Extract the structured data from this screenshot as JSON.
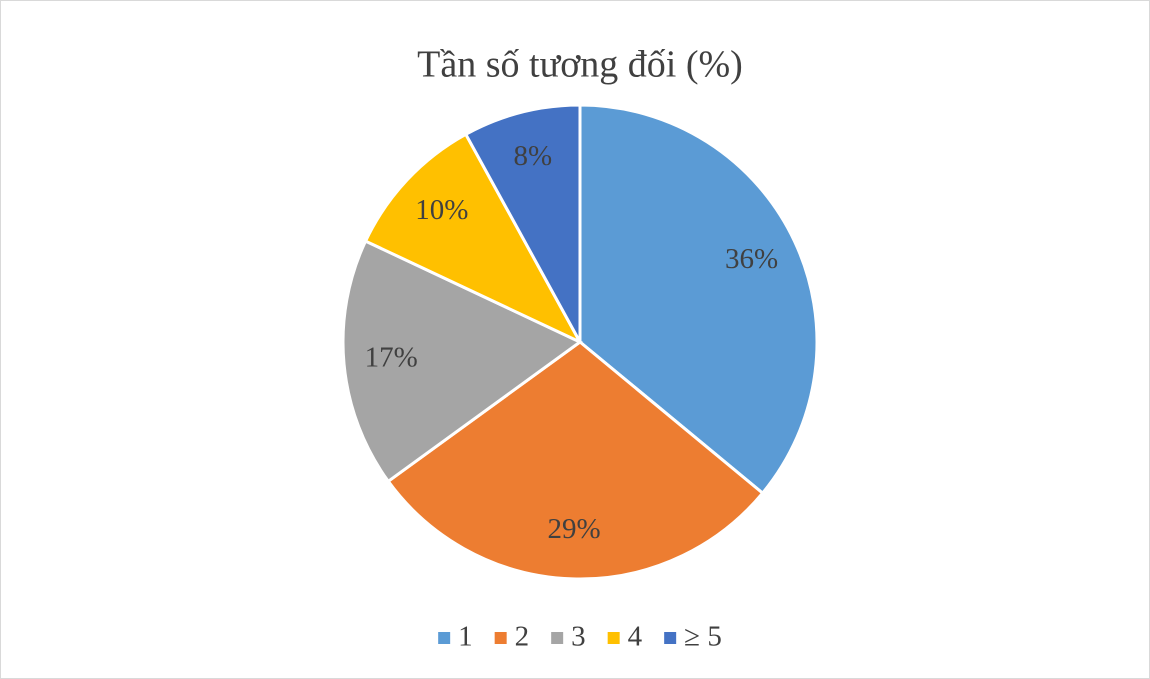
{
  "chart_data": {
    "type": "pie",
    "title": "Tần số tương đối (%)",
    "categories": [
      "1",
      "2",
      "3",
      "4",
      "≥ 5"
    ],
    "values": [
      36,
      29,
      17,
      10,
      8
    ],
    "value_labels": [
      "36%",
      "29%",
      "17%",
      "10%",
      "8%"
    ],
    "colors": [
      "#5b9bd5",
      "#ed7d31",
      "#a5a5a5",
      "#ffc000",
      "#4472c4"
    ],
    "legend": "bottom"
  }
}
